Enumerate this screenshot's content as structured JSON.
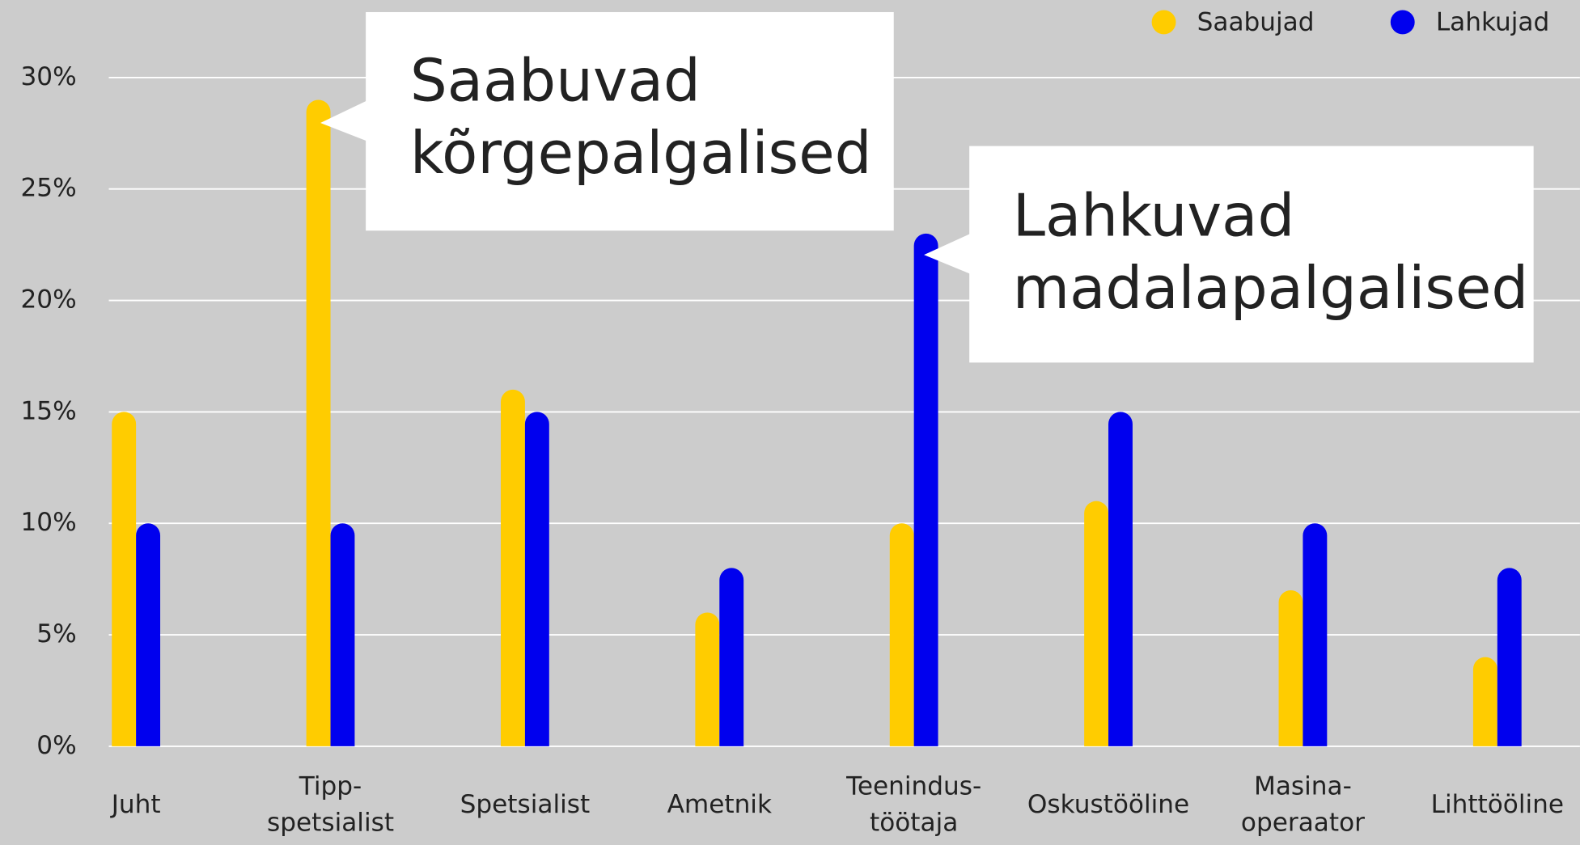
{
  "chart_data": {
    "type": "bar",
    "categories": [
      "Juht",
      "Tipp-\nspetsialist",
      "Spetsialist",
      "Ametnik",
      "Teenindus-\ntöötaja",
      "Oskustööline",
      "Masina-\noperaator",
      "Lihttööline"
    ],
    "series": [
      {
        "name": "Saabujad",
        "color": "#ffcc00",
        "values": [
          15,
          29,
          16,
          6,
          10,
          11,
          7,
          4
        ]
      },
      {
        "name": "Lahkujad",
        "color": "#0000ee",
        "values": [
          10,
          10,
          15,
          8,
          23,
          15,
          10,
          8
        ]
      }
    ],
    "ylim": [
      0,
      30
    ],
    "yticks": [
      {
        "value": 0,
        "label": "0%"
      },
      {
        "value": 5,
        "label": "5%"
      },
      {
        "value": 10,
        "label": "10%"
      },
      {
        "value": 15,
        "label": "15%"
      },
      {
        "value": 20,
        "label": "20%"
      },
      {
        "value": 25,
        "label": "25%"
      },
      {
        "value": 30,
        "label": "30%"
      }
    ],
    "grid": true,
    "legend": "top-right",
    "annotations": [
      {
        "text": "Saabuvad\nkõrgepalgalised"
      },
      {
        "text": "Lahkuvad\nmadalapalgalised"
      }
    ]
  }
}
